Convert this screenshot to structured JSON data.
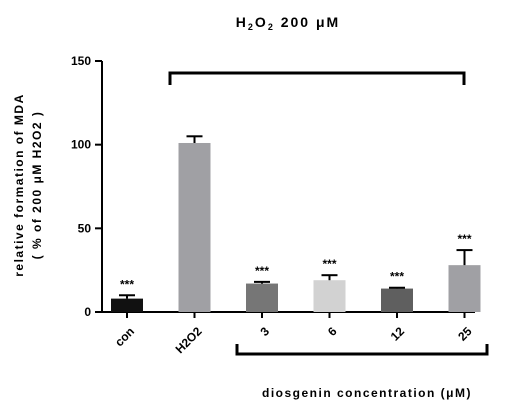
{
  "chart_data": {
    "type": "bar",
    "title": {
      "part1": "H",
      "sub1": "2",
      "part2": "O",
      "sub2": "2",
      "part3": " 200 μM"
    },
    "ylabel_line1": "relative formation of MDA",
    "ylabel_line2": "( % of 200 μM H2O2 )",
    "xlabel": "diosgenin concentration (μM)",
    "ylim": [
      0,
      150
    ],
    "yticks": [
      0,
      50,
      100,
      150
    ],
    "categories": [
      "con",
      "H2O2",
      "3",
      "6",
      "12",
      "25"
    ],
    "values": [
      8,
      101,
      17,
      19,
      14,
      28
    ],
    "errors": [
      2,
      4,
      1,
      3,
      0.5,
      9
    ],
    "significance": [
      "***",
      "",
      "***",
      "***",
      "***",
      "***"
    ],
    "colors": [
      "#111111",
      "#a0a0a4",
      "#767676",
      "#d2d2d2",
      "#5f5f5f",
      "#a0a0a4"
    ],
    "grid": false,
    "legend": "none"
  }
}
